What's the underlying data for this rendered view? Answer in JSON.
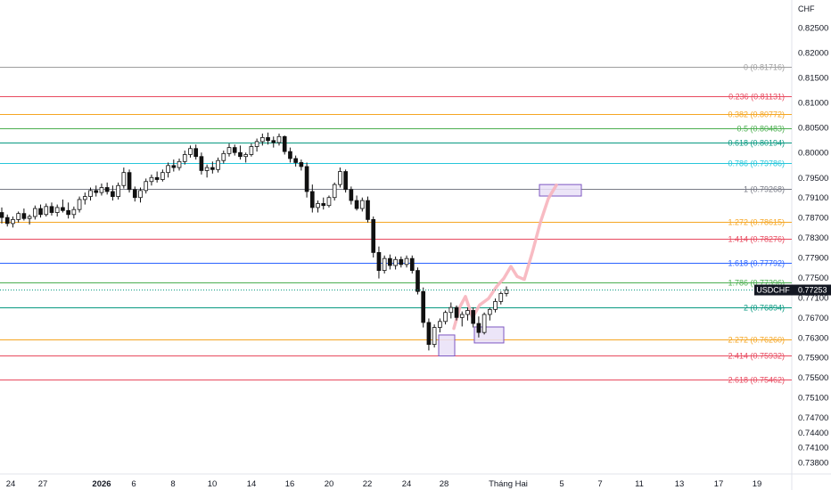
{
  "chart_data": {
    "type": "candlestick",
    "symbol": "USDCHF",
    "currency": "CHF",
    "last_price": "0.77253",
    "y_axis": {
      "range": [
        0.7371,
        0.8293
      ],
      "ticks": [
        "0.82500",
        "0.82000",
        "0.81500",
        "0.81000",
        "0.80500",
        "0.80000",
        "0.79500",
        "0.79100",
        "0.78700",
        "0.78300",
        "0.77900",
        "0.77500",
        "0.77100",
        "0.76700",
        "0.76300",
        "0.75900",
        "0.75500",
        "0.75100",
        "0.74700",
        "0.74400",
        "0.74100",
        "0.73800"
      ]
    },
    "x_axis": {
      "ticks": [
        {
          "label": "24",
          "bold": false
        },
        {
          "label": "27",
          "bold": false
        },
        {
          "label": "2026",
          "bold": true
        },
        {
          "label": "6",
          "bold": false
        },
        {
          "label": "8",
          "bold": false
        },
        {
          "label": "10",
          "bold": false
        },
        {
          "label": "14",
          "bold": false
        },
        {
          "label": "16",
          "bold": false
        },
        {
          "label": "20",
          "bold": false
        },
        {
          "label": "22",
          "bold": false
        },
        {
          "label": "24",
          "bold": false
        },
        {
          "label": "28",
          "bold": false
        },
        {
          "label": "Tháng Hai",
          "bold": false
        },
        {
          "label": "5",
          "bold": false
        },
        {
          "label": "7",
          "bold": false
        },
        {
          "label": "11",
          "bold": false
        },
        {
          "label": "13",
          "bold": false
        },
        {
          "label": "17",
          "bold": false
        },
        {
          "label": "19",
          "bold": false
        }
      ]
    },
    "fib_levels": [
      {
        "label": "0 (0.81716)",
        "value": 0.81716,
        "color": "#9e9e9e"
      },
      {
        "label": "0.236 (0.81131)",
        "value": 0.81131,
        "color": "#e84a5f"
      },
      {
        "label": "0.382 (0.80772)",
        "value": 0.80772,
        "color": "#f5a623"
      },
      {
        "label": "0.5 (0.80483)",
        "value": 0.80483,
        "color": "#4caf50"
      },
      {
        "label": "0.618 (0.80194)",
        "value": 0.80194,
        "color": "#089981"
      },
      {
        "label": "0.786 (0.79786)",
        "value": 0.79786,
        "color": "#26c6da"
      },
      {
        "label": "1 (0.79268)",
        "value": 0.79268,
        "color": "#787b86"
      },
      {
        "label": "1.272 (0.78615)",
        "value": 0.78615,
        "color": "#f5a623"
      },
      {
        "label": "1.414 (0.78276)",
        "value": 0.78276,
        "color": "#e84a5f"
      },
      {
        "label": "1.618 (0.77792)",
        "value": 0.77792,
        "color": "#2962ff"
      },
      {
        "label": "1.786 (0.77396)",
        "value": 0.77396,
        "color": "#4caf50"
      },
      {
        "label": "2 (0.76894)",
        "value": 0.76894,
        "color": "#089981"
      },
      {
        "label": "2.272 (0.76260)",
        "value": 0.7626,
        "color": "#f5a623"
      },
      {
        "label": "2.414 (0.75932)",
        "value": 0.75932,
        "color": "#e84a5f"
      },
      {
        "label": "2.618 (0.75462)",
        "value": 0.75462,
        "color": "#e84a5f"
      }
    ],
    "candles": [
      [
        0.788,
        0.789,
        0.7858,
        0.787
      ],
      [
        0.787,
        0.7876,
        0.7852,
        0.7858
      ],
      [
        0.7858,
        0.7872,
        0.785,
        0.7866
      ],
      [
        0.7866,
        0.7882,
        0.786,
        0.7878
      ],
      [
        0.7878,
        0.7888,
        0.7864,
        0.7868
      ],
      [
        0.7868,
        0.7876,
        0.7856,
        0.7872
      ],
      [
        0.7872,
        0.7894,
        0.7866,
        0.7888
      ],
      [
        0.7888,
        0.7896,
        0.787,
        0.7876
      ],
      [
        0.7876,
        0.7898,
        0.7872,
        0.7892
      ],
      [
        0.7892,
        0.79,
        0.7874,
        0.788
      ],
      [
        0.788,
        0.7896,
        0.7872,
        0.789
      ],
      [
        0.789,
        0.7906,
        0.788,
        0.7884
      ],
      [
        0.7884,
        0.79,
        0.7868,
        0.7876
      ],
      [
        0.7876,
        0.7892,
        0.7868,
        0.7886
      ],
      [
        0.7886,
        0.7912,
        0.788,
        0.7906
      ],
      [
        0.7906,
        0.792,
        0.7896,
        0.7912
      ],
      [
        0.7912,
        0.793,
        0.7904,
        0.7924
      ],
      [
        0.7924,
        0.7934,
        0.7912,
        0.792
      ],
      [
        0.792,
        0.7938,
        0.7914,
        0.793
      ],
      [
        0.793,
        0.794,
        0.7916,
        0.7922
      ],
      [
        0.7922,
        0.7934,
        0.7904,
        0.7912
      ],
      [
        0.7912,
        0.794,
        0.7906,
        0.7934
      ],
      [
        0.7934,
        0.797,
        0.7928,
        0.796
      ],
      [
        0.796,
        0.7966,
        0.792,
        0.7926
      ],
      [
        0.7926,
        0.7932,
        0.7902,
        0.791
      ],
      [
        0.791,
        0.793,
        0.79,
        0.7924
      ],
      [
        0.7924,
        0.7948,
        0.7918,
        0.7942
      ],
      [
        0.7942,
        0.7956,
        0.7934,
        0.795
      ],
      [
        0.795,
        0.7962,
        0.794,
        0.7946
      ],
      [
        0.7946,
        0.7966,
        0.7942,
        0.796
      ],
      [
        0.796,
        0.798,
        0.795,
        0.7974
      ],
      [
        0.7974,
        0.7986,
        0.7962,
        0.797
      ],
      [
        0.797,
        0.7988,
        0.7964,
        0.7982
      ],
      [
        0.7982,
        0.8004,
        0.7976,
        0.7996
      ],
      [
        0.7996,
        0.8014,
        0.799,
        0.8008
      ],
      [
        0.8008,
        0.8016,
        0.7986,
        0.7992
      ],
      [
        0.7992,
        0.8,
        0.7956,
        0.7964
      ],
      [
        0.7964,
        0.7976,
        0.795,
        0.797
      ],
      [
        0.797,
        0.7982,
        0.7958,
        0.7966
      ],
      [
        0.7966,
        0.799,
        0.796,
        0.7984
      ],
      [
        0.7984,
        0.8004,
        0.7978,
        0.7998
      ],
      [
        0.7998,
        0.8018,
        0.7992,
        0.801
      ],
      [
        0.801,
        0.8016,
        0.7994,
        0.8
      ],
      [
        0.8,
        0.8014,
        0.7986,
        0.7992
      ],
      [
        0.7992,
        0.8,
        0.798,
        0.7996
      ],
      [
        0.7996,
        0.8018,
        0.7992,
        0.8012
      ],
      [
        0.8012,
        0.8028,
        0.8002,
        0.8022
      ],
      [
        0.8022,
        0.8038,
        0.8014,
        0.803
      ],
      [
        0.803,
        0.804,
        0.8016,
        0.8024
      ],
      [
        0.8024,
        0.8032,
        0.801,
        0.802
      ],
      [
        0.802,
        0.8038,
        0.8014,
        0.8032
      ],
      [
        0.8032,
        0.8034,
        0.7996,
        0.8002
      ],
      [
        0.8002,
        0.801,
        0.798,
        0.7988
      ],
      [
        0.7988,
        0.7994,
        0.7972,
        0.798
      ],
      [
        0.798,
        0.7986,
        0.7964,
        0.7972
      ],
      [
        0.7972,
        0.798,
        0.791,
        0.7922
      ],
      [
        0.7922,
        0.7936,
        0.788,
        0.789
      ],
      [
        0.789,
        0.7904,
        0.788,
        0.7898
      ],
      [
        0.7898,
        0.791,
        0.7886,
        0.7894
      ],
      [
        0.7894,
        0.7914,
        0.789,
        0.791
      ],
      [
        0.791,
        0.794,
        0.7904,
        0.7936
      ],
      [
        0.7936,
        0.797,
        0.793,
        0.7962
      ],
      [
        0.7962,
        0.7966,
        0.792,
        0.7926
      ],
      [
        0.7926,
        0.7932,
        0.7896,
        0.7904
      ],
      [
        0.7904,
        0.7914,
        0.7884,
        0.7888
      ],
      [
        0.7888,
        0.791,
        0.7882,
        0.7904
      ],
      [
        0.7904,
        0.7912,
        0.786,
        0.7866
      ],
      [
        0.7866,
        0.7872,
        0.779,
        0.78
      ],
      [
        0.78,
        0.7812,
        0.7748,
        0.7764
      ],
      [
        0.7764,
        0.7794,
        0.7758,
        0.7788
      ],
      [
        0.7788,
        0.7796,
        0.7766,
        0.7774
      ],
      [
        0.7774,
        0.7792,
        0.7766,
        0.7786
      ],
      [
        0.7786,
        0.7792,
        0.777,
        0.7776
      ],
      [
        0.7776,
        0.7794,
        0.777,
        0.7788
      ],
      [
        0.7788,
        0.7794,
        0.7758,
        0.7764
      ],
      [
        0.7764,
        0.777,
        0.7716,
        0.7722
      ],
      [
        0.7722,
        0.773,
        0.765,
        0.766
      ],
      [
        0.766,
        0.7668,
        0.7604,
        0.7616
      ],
      [
        0.7616,
        0.7656,
        0.761,
        0.765
      ],
      [
        0.765,
        0.7668,
        0.764,
        0.7662
      ],
      [
        0.7662,
        0.7684,
        0.7656,
        0.768
      ],
      [
        0.768,
        0.77,
        0.7668,
        0.769
      ],
      [
        0.769,
        0.7694,
        0.7664,
        0.767
      ],
      [
        0.767,
        0.7682,
        0.7652,
        0.7676
      ],
      [
        0.7676,
        0.769,
        0.7664,
        0.7684
      ],
      [
        0.7684,
        0.769,
        0.765,
        0.7658
      ],
      [
        0.7658,
        0.7672,
        0.763,
        0.764
      ],
      [
        0.764,
        0.768,
        0.7636,
        0.7676
      ],
      [
        0.7676,
        0.769,
        0.7664,
        0.7686
      ],
      [
        0.7686,
        0.7708,
        0.768,
        0.7702
      ],
      [
        0.7702,
        0.7722,
        0.7696,
        0.7718
      ],
      [
        0.7718,
        0.7732,
        0.7712,
        0.7725
      ]
    ]
  },
  "ui": {
    "colors": {
      "up": "#089981",
      "down": "#111111",
      "candle": "#111111",
      "last_price_bg": "#131722",
      "projection": "#f7b4bd",
      "zone_fill": "#e9e1f7",
      "zone_stroke": "#7e57c2",
      "crosshair": "#089981"
    }
  }
}
